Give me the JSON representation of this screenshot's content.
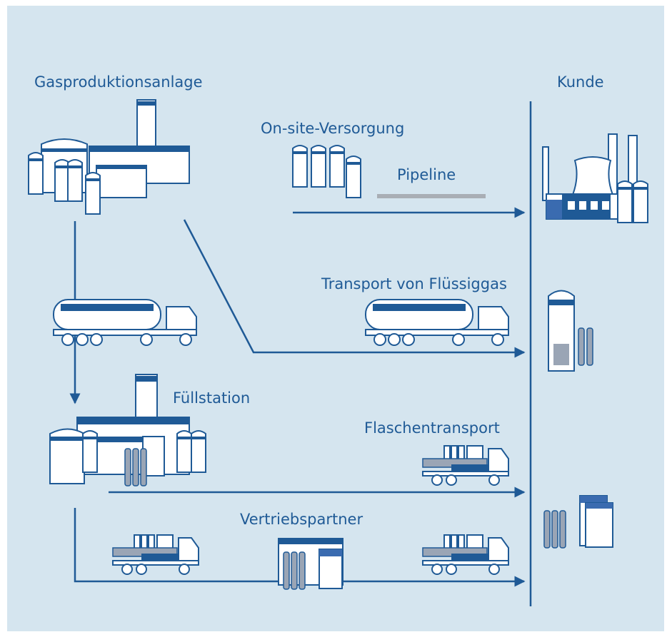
{
  "nodes": [
    {
      "label": "Gasproduktionsanlage"
    },
    {
      "label": "Kunde"
    },
    {
      "label": "On-site-Versorgung"
    },
    {
      "label": "Pipeline"
    },
    {
      "label": "Transport von Flüssiggas"
    },
    {
      "label": "Füllstation"
    },
    {
      "label": "Flaschentransport"
    },
    {
      "label": "Vertriebspartner"
    }
  ]
}
